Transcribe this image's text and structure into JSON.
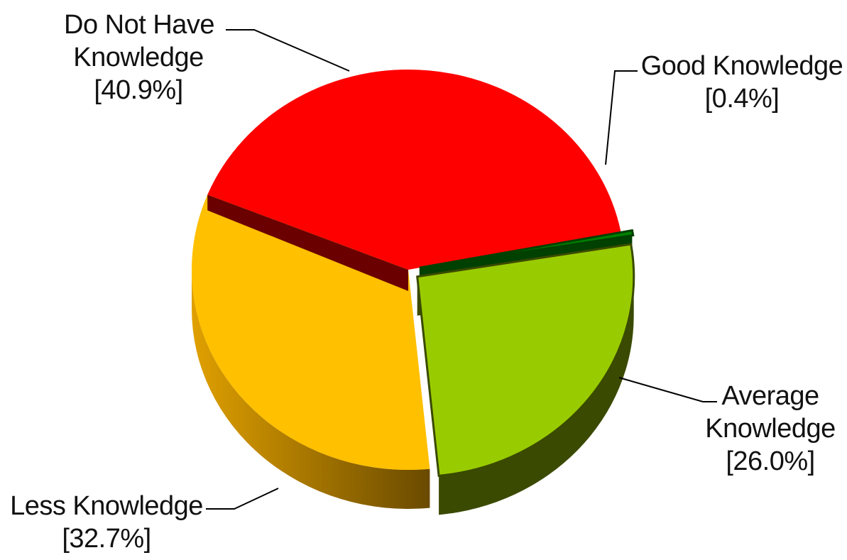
{
  "chart_data": {
    "type": "pie",
    "style": "3d-exploded",
    "slices": [
      {
        "label_lines": [
          "Do Not Have",
          "Knowledge"
        ],
        "pct_text": "[40.9%]",
        "value": 40.9,
        "color": "#ff0000",
        "side_color": "#6a0000",
        "exploded": false
      },
      {
        "label_lines": [
          "Good Knowledge"
        ],
        "pct_text": "[0.4%]",
        "value": 0.4,
        "color": "#008000",
        "side_color": "#004000",
        "exploded": true
      },
      {
        "label_lines": [
          "Average",
          "Knowledge"
        ],
        "pct_text": "[26.0%]",
        "value": 26.0,
        "color": "#99cc00",
        "side_color": "#3a4a00",
        "exploded": true
      },
      {
        "label_lines": [
          "Less Knowledge"
        ],
        "pct_text": "[32.7%]",
        "value": 32.7,
        "color": "#ffc000",
        "side_color": "#8a6000",
        "exploded": false
      }
    ]
  }
}
